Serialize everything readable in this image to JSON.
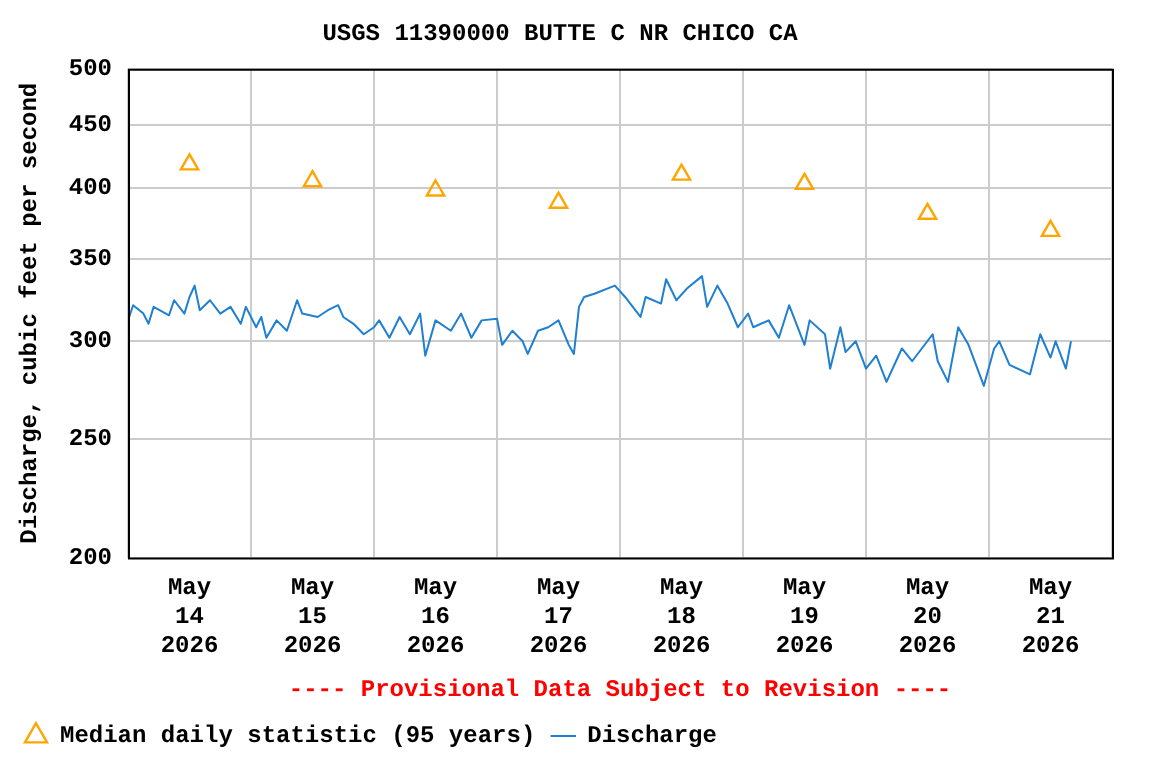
{
  "chart_data": {
    "type": "line",
    "title": "USGS 11390000 BUTTE C NR CHICO CA",
    "ylabel": "Discharge, cubic feet per second",
    "annotations": [
      "---- Provisional Data Subject to Revision ----"
    ],
    "log": "y",
    "grid": true,
    "legend": "bottom",
    "line_style": "solid",
    "xlim": [
      "2026-05-14T00:00",
      "2026-05-22T00:00"
    ],
    "xticks": [
      {
        "value": "2026-05-14T00:00",
        "label": null
      },
      {
        "value": "2026-05-14T12:00",
        "label": "May 14 2026"
      },
      {
        "value": "2026-05-15T00:00",
        "label": null
      },
      {
        "value": "2026-05-15T12:00",
        "label": "May 15 2026"
      },
      {
        "value": "2026-05-16T00:00",
        "label": null
      },
      {
        "value": "2026-05-16T12:00",
        "label": "May 16 2026"
      },
      {
        "value": "2026-05-17T00:00",
        "label": null
      },
      {
        "value": "2026-05-17T12:00",
        "label": "May 17 2026"
      },
      {
        "value": "2026-05-18T00:00",
        "label": null
      },
      {
        "value": "2026-05-18T12:00",
        "label": "May 18 2026"
      },
      {
        "value": "2026-05-19T00:00",
        "label": null
      },
      {
        "value": "2026-05-19T12:00",
        "label": "May 19 2026"
      },
      {
        "value": "2026-05-20T00:00",
        "label": null
      },
      {
        "value": "2026-05-20T12:00",
        "label": "May 20 2026"
      },
      {
        "value": "2026-05-21T00:00",
        "label": null
      },
      {
        "value": "2026-05-21T12:00",
        "label": "May 21 2026"
      },
      {
        "value": "2026-05-22T00:00",
        "label": null
      }
    ],
    "ylim": [
      200,
      500
    ],
    "yticks": [
      200,
      250,
      300,
      350,
      400,
      450,
      500
    ],
    "series": [
      {
        "name": "Median daily statistic (95 years)",
        "type": "scatter",
        "marker": "triangle",
        "color": "#ffa500",
        "x": [
          "2026-05-14T12:00",
          "2026-05-15T12:00",
          "2026-05-16T12:00",
          "2026-05-17T12:00",
          "2026-05-18T12:00",
          "2026-05-19T12:00",
          "2026-05-20T12:00",
          "2026-05-21T12:00"
        ],
        "values": [
          418,
          405,
          398,
          389,
          410,
          403,
          381,
          369
        ]
      },
      {
        "name": "Discharge",
        "marker": "none",
        "color": "#1f7fd0",
        "x": [
          "2026-05-14T00:00",
          "2026-05-14T01:00",
          "2026-05-14T03:00",
          "2026-05-14T04:00",
          "2026-05-14T05:00",
          "2026-05-14T08:00",
          "2026-05-14T09:00",
          "2026-05-14T11:00",
          "2026-05-14T12:00",
          "2026-05-14T13:00",
          "2026-05-14T14:00",
          "2026-05-14T16:00",
          "2026-05-14T18:00",
          "2026-05-14T20:00",
          "2026-05-14T22:00",
          "2026-05-14T23:00",
          "2026-05-15T01:00",
          "2026-05-15T02:00",
          "2026-05-15T03:00",
          "2026-05-15T05:00",
          "2026-05-15T07:00",
          "2026-05-15T09:00",
          "2026-05-15T10:00",
          "2026-05-15T13:00",
          "2026-05-15T15:00",
          "2026-05-15T17:00",
          "2026-05-15T18:00",
          "2026-05-15T20:00",
          "2026-05-15T22:00",
          "2026-05-16T00:00",
          "2026-05-16T01:00",
          "2026-05-16T03:00",
          "2026-05-16T05:00",
          "2026-05-16T07:00",
          "2026-05-16T09:00",
          "2026-05-16T10:00",
          "2026-05-16T12:00",
          "2026-05-16T15:00",
          "2026-05-16T17:00",
          "2026-05-16T19:00",
          "2026-05-16T21:00",
          "2026-05-17T00:00",
          "2026-05-17T01:00",
          "2026-05-17T03:00",
          "2026-05-17T05:00",
          "2026-05-17T06:00",
          "2026-05-17T08:00",
          "2026-05-17T10:00",
          "2026-05-17T12:00",
          "2026-05-17T14:00",
          "2026-05-17T15:00",
          "2026-05-17T16:00",
          "2026-05-17T17:00",
          "2026-05-17T19:00",
          "2026-05-17T23:00",
          "2026-05-18T01:00",
          "2026-05-18T04:00",
          "2026-05-18T05:00",
          "2026-05-18T08:00",
          "2026-05-18T09:00",
          "2026-05-18T11:00",
          "2026-05-18T13:00",
          "2026-05-18T16:00",
          "2026-05-18T17:00",
          "2026-05-18T19:00",
          "2026-05-18T21:00",
          "2026-05-18T23:00",
          "2026-05-19T01:00",
          "2026-05-19T02:00",
          "2026-05-19T05:00",
          "2026-05-19T07:00",
          "2026-05-19T09:00",
          "2026-05-19T12:00",
          "2026-05-19T13:00",
          "2026-05-19T16:00",
          "2026-05-19T17:00",
          "2026-05-19T19:00",
          "2026-05-19T20:00",
          "2026-05-19T22:00",
          "2026-05-20T00:00",
          "2026-05-20T02:00",
          "2026-05-20T04:00",
          "2026-05-20T07:00",
          "2026-05-20T09:00",
          "2026-05-20T13:00",
          "2026-05-20T14:00",
          "2026-05-20T16:00",
          "2026-05-20T18:00",
          "2026-05-20T20:00",
          "2026-05-20T23:00",
          "2026-05-21T01:00",
          "2026-05-21T02:00",
          "2026-05-21T04:00",
          "2026-05-21T08:00",
          "2026-05-21T10:00",
          "2026-05-21T12:00",
          "2026-05-21T13:00",
          "2026-05-21T15:00",
          "2026-05-21T16:00"
        ],
        "values": [
          312,
          321,
          316,
          310,
          320,
          315,
          324,
          316,
          326,
          333,
          318,
          324,
          316,
          320,
          310,
          320,
          308,
          314,
          302,
          312,
          306,
          324,
          316,
          314,
          318,
          321,
          314,
          310,
          304,
          308,
          312,
          302,
          314,
          304,
          316,
          292,
          312,
          306,
          316,
          302,
          312,
          313,
          298,
          306,
          300,
          293,
          306,
          308,
          312,
          298,
          293,
          320,
          326,
          328,
          333,
          326,
          314,
          326,
          322,
          337,
          324,
          331,
          339,
          320,
          333,
          322,
          308,
          316,
          308,
          312,
          302,
          321,
          298,
          312,
          304,
          285,
          308,
          294,
          300,
          285,
          292,
          278,
          296,
          289,
          304,
          289,
          278,
          308,
          298,
          276,
          296,
          300,
          287,
          282,
          304,
          291,
          300,
          285,
          300
        ]
      }
    ]
  }
}
